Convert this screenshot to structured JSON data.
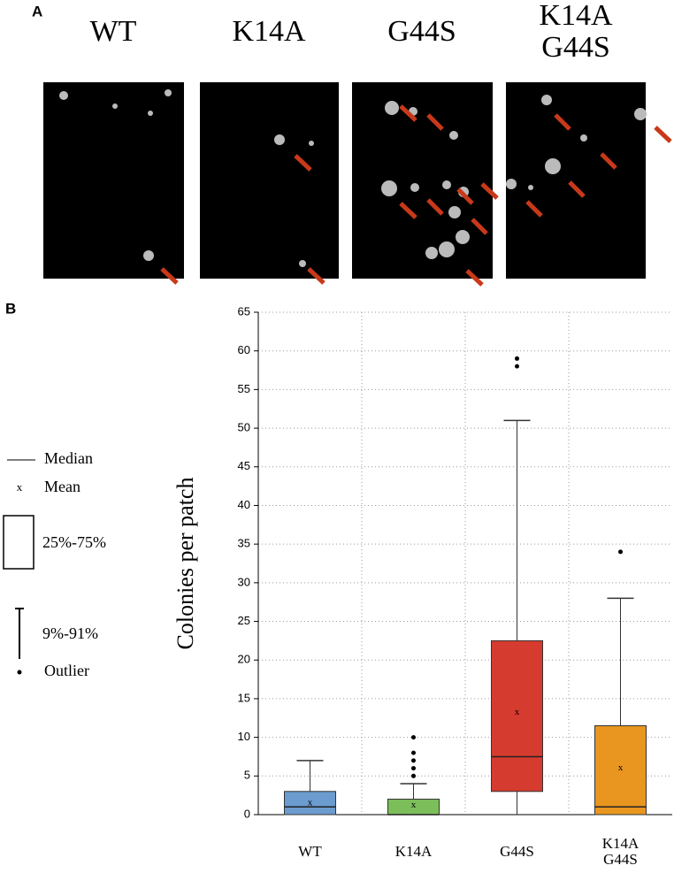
{
  "panel_a": {
    "label": "A",
    "columns": [
      "WT",
      "K14A",
      "G44S",
      "K14A\nG44S"
    ]
  },
  "chart_data": {
    "type": "box",
    "panel_label": "B",
    "y_label": "Colonies per patch",
    "categories": [
      "WT",
      "K14A",
      "G44S",
      "K14A\nG44S"
    ],
    "ylim": [
      0,
      65
    ],
    "yticks": [
      0,
      5,
      10,
      15,
      20,
      25,
      30,
      35,
      40,
      45,
      50,
      55,
      60,
      65
    ],
    "grid": true,
    "mean_marker": "x",
    "legend": {
      "median": "Median",
      "mean": "Mean",
      "box": "25%-75%",
      "whisker": "9%-91%",
      "outlier": "Outlier"
    },
    "boxes": [
      {
        "color": "#6b9bcf",
        "whisker_low": 0,
        "q1": 0,
        "median": 1,
        "q3": 3,
        "whisker_high": 7,
        "mean": 1.5,
        "outliers": []
      },
      {
        "color": "#7cbf5a",
        "whisker_low": 0,
        "q1": 0,
        "median": 0,
        "q3": 2,
        "whisker_high": 4,
        "mean": 1.2,
        "outliers": [
          5,
          6,
          7,
          8,
          10
        ]
      },
      {
        "color": "#d63b2f",
        "whisker_low": 0,
        "q1": 3,
        "median": 7.5,
        "q3": 22.5,
        "whisker_high": 51,
        "mean": 13.2,
        "outliers": [
          58,
          59
        ]
      },
      {
        "color": "#e8961f",
        "whisker_low": 0,
        "q1": 0,
        "median": 1,
        "q3": 11.5,
        "whisker_high": 28,
        "mean": 6,
        "outliers": [
          34
        ]
      }
    ]
  }
}
